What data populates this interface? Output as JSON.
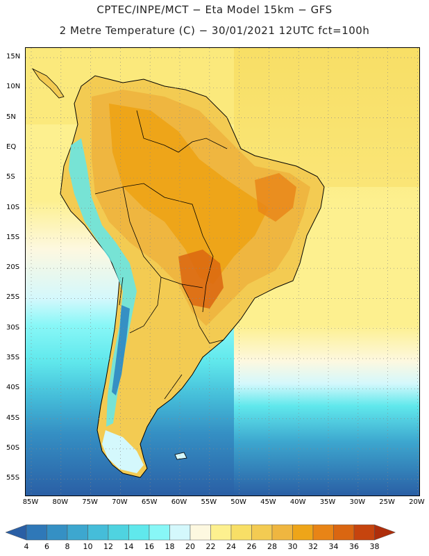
{
  "title_line1": "CPTEC/INPE/MCT −  Eta Model 15km − GFS",
  "title_line2": "2 Metre Temperature (C) − 30/01/2021 12UTC fct=100h",
  "lat_labels": [
    "15N",
    "10N",
    "5N",
    "EQ",
    "5S",
    "10S",
    "15S",
    "20S",
    "25S",
    "30S",
    "35S",
    "40S",
    "45S",
    "50S",
    "55S"
  ],
  "lon_labels": [
    "85W",
    "80W",
    "75W",
    "70W",
    "65W",
    "60W",
    "55W",
    "50W",
    "45W",
    "40W",
    "35W",
    "30W",
    "25W",
    "20W"
  ],
  "colorbar": {
    "labels": [
      "4",
      "6",
      "8",
      "10",
      "12",
      "14",
      "16",
      "18",
      "20",
      "22",
      "24",
      "26",
      "28",
      "30",
      "32",
      "34",
      "36",
      "38"
    ],
    "colors": [
      "#2a5fa5",
      "#2f78b8",
      "#3590c4",
      "#3da7cf",
      "#45bdd9",
      "#4fd3e0",
      "#60e8ec",
      "#88f7f7",
      "#d4f8fc",
      "#fdf8e0",
      "#fdf08f",
      "#f8df66",
      "#f3cb52",
      "#efb640",
      "#eea519",
      "#e88416",
      "#da6611",
      "#c6440e",
      "#ae2e0b"
    ]
  }
}
